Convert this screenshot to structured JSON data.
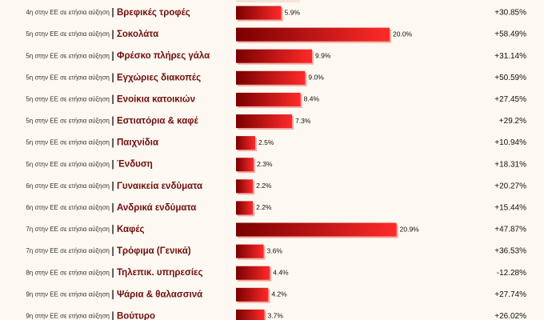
{
  "chart_data": {
    "type": "bar",
    "orientation": "horizontal",
    "rows": [
      {
        "rank": "4η στην ΕΕ σε ετήσια αύξηση",
        "category": "Βρεφικές τροφές",
        "value": 5.9,
        "value_label": "5.9%",
        "change": "+30.85%"
      },
      {
        "rank": "5η στην ΕΕ σε ετήσια αύξηση",
        "category": "Σοκολάτα",
        "value": 20.0,
        "value_label": "20.0%",
        "change": "+58.49%"
      },
      {
        "rank": "5η στην ΕΕ σε ετήσια αύξηση",
        "category": "Φρέσκο πλήρες γάλα",
        "value": 9.9,
        "value_label": "9.9%",
        "change": "+31.14%"
      },
      {
        "rank": "5η στην ΕΕ σε ετήσια αύξηση",
        "category": "Εγχώριες διακοπές",
        "value": 9.0,
        "value_label": "9.0%",
        "change": "+50.59%"
      },
      {
        "rank": "5η στην ΕΕ σε ετήσια αύξηση",
        "category": "Ενοίκια κατοικιών",
        "value": 8.4,
        "value_label": "8.4%",
        "change": "+27.45%"
      },
      {
        "rank": "5η στην ΕΕ σε ετήσια αύξηση",
        "category": "Εστιατόρια & καφέ",
        "value": 7.3,
        "value_label": "7.3%",
        "change": "+29.2%"
      },
      {
        "rank": "5η στην ΕΕ σε ετήσια αύξηση",
        "category": "Παιχνίδια",
        "value": 2.5,
        "value_label": "2.5%",
        "change": "+10.94%"
      },
      {
        "rank": "5η στην ΕΕ σε ετήσια αύξηση",
        "category": "Ένδυση",
        "value": 2.3,
        "value_label": "2.3%",
        "change": "+18.31%"
      },
      {
        "rank": "6η στην ΕΕ σε ετήσια αύξηση",
        "category": "Γυναικεία ενδύματα",
        "value": 2.2,
        "value_label": "2.2%",
        "change": "+20.27%"
      },
      {
        "rank": "6η στην ΕΕ σε ετήσια αύξηση",
        "category": "Ανδρικά ενδύματα",
        "value": 2.2,
        "value_label": "2.2%",
        "change": "+15.44%"
      },
      {
        "rank": "7η στην ΕΕ σε ετήσια αύξηση",
        "category": "Καφές",
        "value": 20.9,
        "value_label": "20.9%",
        "change": "+47.87%"
      },
      {
        "rank": "7η στην ΕΕ σε ετήσια αύξηση",
        "category": "Τρόφιμα (Γενικά)",
        "value": 3.6,
        "value_label": "3.6%",
        "change": "+36.53%"
      },
      {
        "rank": "8η στην ΕΕ σε ετήσια αύξηση",
        "category": "Τηλεπικ. υπηρεσίες",
        "value": 4.4,
        "value_label": "4.4%",
        "change": "-12.28%"
      },
      {
        "rank": "9η στην ΕΕ σε ετήσια αύξηση",
        "category": "Ψάρια & θαλασσινά",
        "value": 4.2,
        "value_label": "4.2%",
        "change": "+27.74%"
      },
      {
        "rank": "9η στην ΕΕ σε ετήσια αύξηση",
        "category": "Βούτυρο",
        "value": 3.7,
        "value_label": "3.7%",
        "change": "+26.02%"
      }
    ],
    "separator": "|",
    "xlim": [
      0,
      21
    ],
    "grid": false,
    "colors": {
      "bar_dark": "#7a0000",
      "bar_light": "#ff2a2a",
      "bar_shadow": "#f4a9a0",
      "category_text": "#6e0e0e"
    }
  }
}
